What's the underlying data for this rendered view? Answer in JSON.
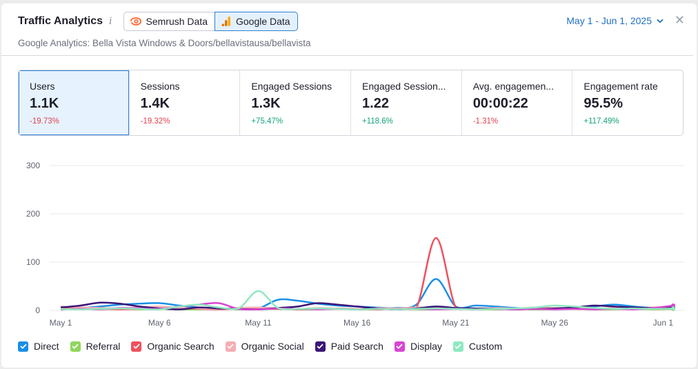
{
  "header": {
    "title": "Traffic Analytics",
    "info_glyph": "i",
    "sources": [
      {
        "label": "Semrush Data",
        "icon": "semrush-logo-icon",
        "active": false
      },
      {
        "label": "Google Data",
        "icon": "google-analytics-logo-icon",
        "active": true
      }
    ],
    "date_range": "May 1 - Jun 1, 2025",
    "close_glyph": "✕",
    "subtitle": "Google Analytics: Bella Vista Windows & Doors/bellavistausa/bellavista"
  },
  "metrics": [
    {
      "label": "Users",
      "value": "1.1K",
      "delta": "-19.73%",
      "trend": "neg",
      "active": true
    },
    {
      "label": "Sessions",
      "value": "1.4K",
      "delta": "-19.32%",
      "trend": "neg",
      "active": false
    },
    {
      "label": "Engaged Sessions",
      "value": "1.3K",
      "delta": "+75.47%",
      "trend": "pos",
      "active": false
    },
    {
      "label": "Engaged Session...",
      "value": "1.22",
      "delta": "+118.6%",
      "trend": "pos",
      "active": false
    },
    {
      "label": "Avg. engagemen...",
      "value": "00:00:22",
      "delta": "-1.31%",
      "trend": "neg",
      "active": false
    },
    {
      "label": "Engagement rate",
      "value": "95.5%",
      "delta": "+117.49%",
      "trend": "pos",
      "active": false
    }
  ],
  "chart_data": {
    "type": "line",
    "x": [
      "May 1",
      "May 2",
      "May 3",
      "May 4",
      "May 5",
      "May 6",
      "May 7",
      "May 8",
      "May 9",
      "May 10",
      "May 11",
      "May 12",
      "May 13",
      "May 14",
      "May 15",
      "May 16",
      "May 17",
      "May 18",
      "May 19",
      "May 20",
      "May 21",
      "May 22",
      "May 23",
      "May 24",
      "May 25",
      "May 26",
      "May 27",
      "May 28",
      "May 29",
      "May 30",
      "May 31",
      "Jun 1"
    ],
    "x_tick_labels": [
      "May 1",
      "May 6",
      "May 11",
      "May 16",
      "May 21",
      "May 26",
      "Jun 1"
    ],
    "y_ticks": [
      0,
      100,
      200,
      300
    ],
    "ylim": [
      0,
      300
    ],
    "grid": true,
    "legend_position": "bottom-left",
    "series": [
      {
        "name": "Direct",
        "color": "#1a8fe6",
        "values": [
          3,
          5,
          8,
          12,
          14,
          15,
          10,
          6,
          4,
          3,
          4,
          22,
          20,
          14,
          10,
          8,
          6,
          5,
          12,
          65,
          8,
          10,
          8,
          5,
          4,
          3,
          5,
          8,
          12,
          8,
          5,
          6
        ]
      },
      {
        "name": "Referral",
        "color": "#8ed65c",
        "values": [
          2,
          3,
          2,
          3,
          2,
          3,
          2,
          2,
          3,
          2,
          2,
          3,
          2,
          2,
          3,
          2,
          2,
          3,
          2,
          2,
          3,
          2,
          2,
          3,
          2,
          2,
          3,
          2,
          2,
          3,
          2,
          3
        ]
      },
      {
        "name": "Organic Search",
        "color": "#f0505c",
        "values": [
          5,
          4,
          3,
          2,
          3,
          4,
          5,
          3,
          2,
          3,
          4,
          3,
          2,
          3,
          4,
          3,
          2,
          3,
          5,
          150,
          6,
          4,
          3,
          2,
          3,
          4,
          3,
          2,
          3,
          4,
          3,
          4
        ]
      },
      {
        "name": "Organic Social",
        "color": "#f6aeb3",
        "values": [
          8,
          6,
          5,
          4,
          6,
          8,
          5,
          4,
          3,
          5,
          6,
          4,
          3,
          5,
          4,
          3,
          5,
          4,
          6,
          5,
          4,
          3,
          5,
          4,
          6,
          5,
          4,
          3,
          5,
          4,
          6,
          8
        ]
      },
      {
        "name": "Paid Search",
        "color": "#3b1678",
        "values": [
          6,
          10,
          16,
          14,
          8,
          4,
          2,
          6,
          4,
          3,
          2,
          5,
          8,
          15,
          12,
          8,
          4,
          2,
          4,
          8,
          5,
          4,
          3,
          2,
          3,
          4,
          6,
          10,
          8,
          6,
          5,
          6
        ]
      },
      {
        "name": "Display",
        "color": "#d845d1",
        "values": [
          2,
          3,
          2,
          5,
          4,
          3,
          8,
          12,
          15,
          3,
          2,
          4,
          3,
          2,
          3,
          2,
          3,
          2,
          3,
          2,
          3,
          2,
          3,
          2,
          3,
          2,
          3,
          2,
          3,
          2,
          5,
          10
        ]
      },
      {
        "name": "Custom",
        "color": "#8fe8c0",
        "values": [
          3,
          2,
          3,
          4,
          3,
          2,
          8,
          12,
          6,
          4,
          40,
          5,
          3,
          4,
          3,
          2,
          3,
          2,
          3,
          4,
          3,
          2,
          3,
          4,
          6,
          10,
          8,
          5,
          3,
          4,
          3,
          4
        ]
      }
    ]
  },
  "legend": [
    {
      "name": "Direct",
      "color": "#1a8fe6"
    },
    {
      "name": "Referral",
      "color": "#8ed65c"
    },
    {
      "name": "Organic Search",
      "color": "#f0505c"
    },
    {
      "name": "Organic Social",
      "color": "#f6aeb3"
    },
    {
      "name": "Paid Search",
      "color": "#3b1678"
    },
    {
      "name": "Display",
      "color": "#d845d1"
    },
    {
      "name": "Custom",
      "color": "#8fe8c0"
    }
  ]
}
